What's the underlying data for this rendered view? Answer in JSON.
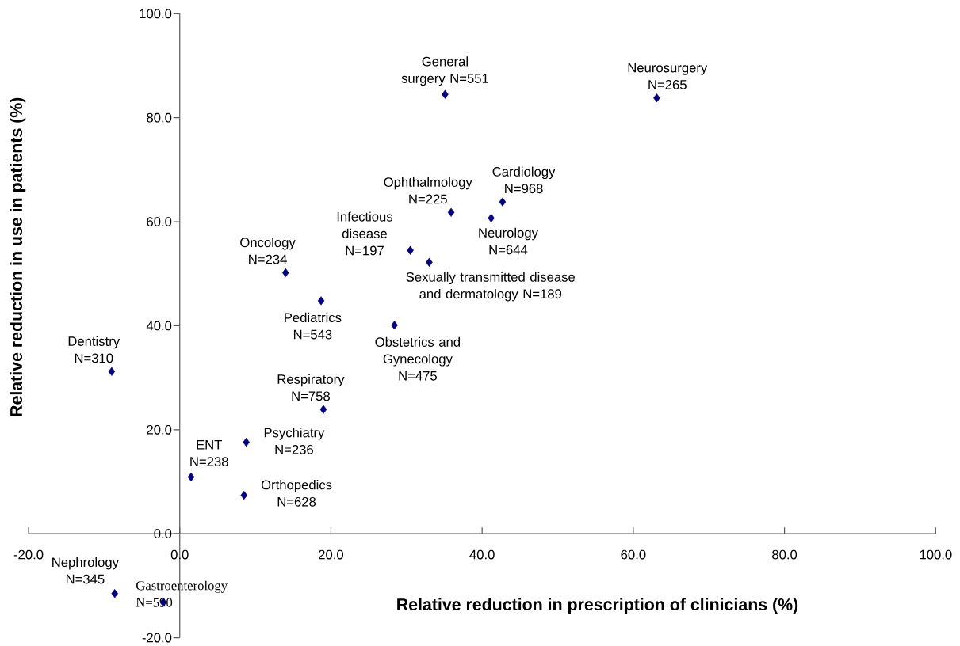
{
  "chart_data": {
    "type": "scatter",
    "xlabel": "Relative reduction in prescription of clinicians (%)",
    "ylabel": "Relative reduction in use in patients (%)",
    "color": "#000080",
    "marker": "diamond",
    "x": [
      35.1,
      63.1,
      35.9,
      42.7,
      41.2,
      30.5,
      33.0,
      14.0,
      18.7,
      28.4,
      -9.0,
      19.0,
      8.8,
      1.5,
      8.5,
      -8.6,
      -2.2
    ],
    "values": [
      84.5,
      83.8,
      61.8,
      63.8,
      60.7,
      54.5,
      52.2,
      50.2,
      44.8,
      40.1,
      31.2,
      23.9,
      17.6,
      10.9,
      7.4,
      -11.5,
      -13.2
    ],
    "xlim": [
      -20,
      100
    ],
    "ylim": [
      -20,
      100
    ],
    "xticks": [
      {
        "value": -20,
        "label": "-20.0"
      },
      {
        "value": 0,
        "label": "0.0"
      },
      {
        "value": 20,
        "label": "20.0"
      },
      {
        "value": 40,
        "label": "40.0"
      },
      {
        "value": 60,
        "label": "60.0"
      },
      {
        "value": 80,
        "label": "80.0"
      },
      {
        "value": 100,
        "label": "100.0"
      }
    ],
    "yticks": [
      {
        "value": -20,
        "label": "-20.0"
      },
      {
        "value": 0,
        "label": "0.0"
      },
      {
        "value": 20,
        "label": "20.0"
      },
      {
        "value": 40,
        "label": "40.0"
      },
      {
        "value": 60,
        "label": "60.0"
      },
      {
        "value": 80,
        "label": "80.0"
      },
      {
        "value": 100,
        "label": "100.0"
      }
    ],
    "annotations": [
      {
        "text": "General surgery N=551",
        "x": 35.1,
        "y": 84.5
      },
      {
        "text": "Neurosurgery N=265",
        "x": 63.1,
        "y": 83.8
      },
      {
        "text": "Ophthalmology N=225",
        "x": 35.9,
        "y": 61.8
      },
      {
        "text": "Cardiology N=968",
        "x": 42.7,
        "y": 63.8
      },
      {
        "text": "Neurology N=644",
        "x": 41.2,
        "y": 60.7
      },
      {
        "text": "Infectious disease N=197",
        "x": 30.5,
        "y": 54.5
      },
      {
        "text": "Sexually transmitted disease and dermatology N=189",
        "x": 33.0,
        "y": 52.2
      },
      {
        "text": "Oncology N=234",
        "x": 14.0,
        "y": 50.2
      },
      {
        "text": "Pediatrics N=543",
        "x": 18.7,
        "y": 44.8
      },
      {
        "text": "Obstetrics and Gynecology N=475",
        "x": 28.4,
        "y": 40.1
      },
      {
        "text": "Dentistry N=310",
        "x": -9.0,
        "y": 31.2
      },
      {
        "text": "Respiratory N=758",
        "x": 19.0,
        "y": 23.9
      },
      {
        "text": "Psychiatry N=236",
        "x": 8.8,
        "y": 17.6
      },
      {
        "text": "ENT N=238",
        "x": 1.5,
        "y": 10.9
      },
      {
        "text": "Orthopedics N=628",
        "x": 8.5,
        "y": 7.4
      },
      {
        "text": "Nephrology N=345",
        "x": -8.6,
        "y": -11.5
      },
      {
        "text": "Gastroenterology N=590",
        "x": -2.2,
        "y": -13.2
      }
    ]
  }
}
